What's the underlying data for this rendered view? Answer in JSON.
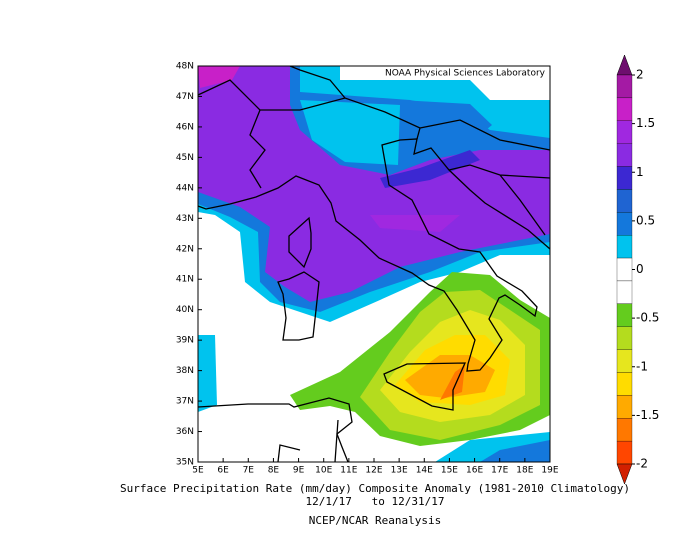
{
  "map": {
    "credit": "NOAA Physical Sciences Laboratory",
    "lat_labels": [
      "48N",
      "47N",
      "46N",
      "45N",
      "44N",
      "43N",
      "42N",
      "41N",
      "40N",
      "39N",
      "38N",
      "37N",
      "36N",
      "35N"
    ],
    "lon_labels": [
      "5E",
      "6E",
      "7E",
      "8E",
      "9E",
      "10E",
      "11E",
      "12E",
      "13E",
      "14E",
      "15E",
      "16E",
      "17E",
      "18E",
      "19E"
    ],
    "caption": [
      "Surface Precipitation Rate (mm/day) Composite Anomaly (1981-2010 Climatology)",
      "12/1/17   to 12/31/17",
      "NCEP/NCAR Reanalysis"
    ]
  },
  "colorbar": {
    "ticks": [
      2,
      1.5,
      1,
      0.5,
      0,
      -0.5,
      -1,
      -1.5,
      -2
    ],
    "colors": [
      "#6e0e6e",
      "#a41aa4",
      "#c820c8",
      "#a028e0",
      "#8a2be2",
      "#3c28d2",
      "#1f64d2",
      "#1478dc",
      "#00c3ee",
      "#ffffff",
      "#ffffff",
      "#64cc1e",
      "#b4dc1e",
      "#e6e61e",
      "#ffdc00",
      "#ffaa00",
      "#ff7800",
      "#ff4600",
      "#d22000"
    ]
  }
}
